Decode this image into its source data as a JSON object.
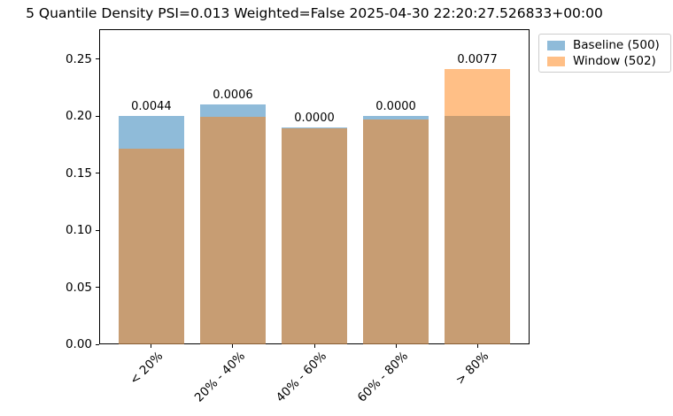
{
  "chart_data": {
    "type": "bar",
    "title": "5 Quantile Density PSI=0.013 Weighted=False 2025-04-30 22:20:27.526833+00:00",
    "categories": [
      "< 20%",
      "20% - 40%",
      "40% - 60%",
      "60% - 80%",
      "> 80%"
    ],
    "series": [
      {
        "name": "Baseline (500)",
        "color": "#1f77b4",
        "alpha": 0.5,
        "values": [
          0.2,
          0.21,
          0.19,
          0.2,
          0.2
        ]
      },
      {
        "name": "Window (502)",
        "color": "#ff7f0e",
        "alpha": 0.5,
        "values": [
          0.1713,
          0.1992,
          0.1892,
          0.1972,
          0.241
        ]
      }
    ],
    "bar_annotations": [
      "0.0044",
      "0.0006",
      "0.0000",
      "0.0000",
      "0.0077"
    ],
    "ytick_labels": [
      "0.00",
      "0.05",
      "0.10",
      "0.15",
      "0.20",
      "0.25"
    ],
    "ylim": [
      0,
      0.276
    ],
    "xlabel": "",
    "ylabel": "",
    "grid": false,
    "legend": {
      "position": "upper-right-outside",
      "entries": [
        "Baseline (500)",
        "Window (502)"
      ]
    },
    "psi_total": "0.013",
    "weighted": "False",
    "timestamp": "2025-04-30 22:20:27.526833+00:00"
  }
}
